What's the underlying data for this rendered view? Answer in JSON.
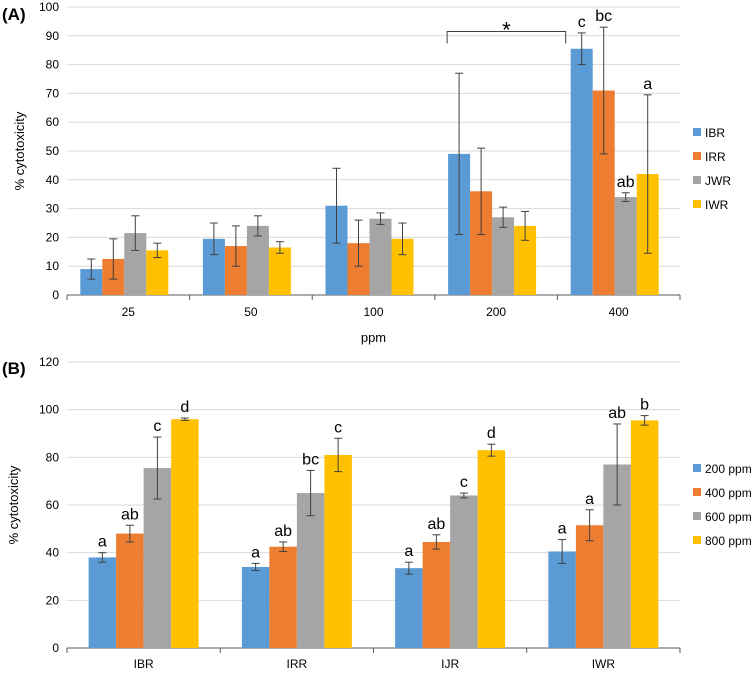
{
  "chart_data": [
    {
      "panel_label": "(A)",
      "type": "bar",
      "xlabel": "ppm",
      "ylabel": "% cytotoxicity",
      "ylim": [
        0,
        100
      ],
      "ytick_step": 10,
      "grid": true,
      "legend_position": "right",
      "categories": [
        "25",
        "50",
        "100",
        "200",
        "400"
      ],
      "series": [
        {
          "name": "IBR",
          "color": "#5b9bd5",
          "values": [
            9,
            19.5,
            31,
            49,
            85.5
          ],
          "errors": [
            3.5,
            5.5,
            13,
            28,
            5.5
          ],
          "labels": [
            "",
            "",
            "",
            "",
            "c"
          ]
        },
        {
          "name": "IRR",
          "color": "#ed7d31",
          "values": [
            12.5,
            17,
            18,
            36,
            71
          ],
          "errors": [
            7,
            7,
            8,
            15,
            22
          ],
          "labels": [
            "",
            "",
            "",
            "",
            "bc"
          ]
        },
        {
          "name": "JWR",
          "color": "#a5a5a5",
          "values": [
            21.5,
            24,
            26.5,
            27,
            34
          ],
          "errors": [
            6,
            3.5,
            2,
            3.5,
            1.5
          ],
          "labels": [
            "",
            "",
            "",
            "",
            "ab"
          ]
        },
        {
          "name": "IWR",
          "color": "#ffc000",
          "values": [
            15.5,
            16.5,
            19.5,
            24,
            42
          ],
          "errors": [
            2.5,
            2,
            5.5,
            5,
            27.5
          ],
          "labels": [
            "",
            "",
            "",
            "",
            "a"
          ]
        }
      ],
      "annotation": {
        "text": "*",
        "from_category": "200",
        "to_category": "400"
      }
    },
    {
      "panel_label": "(B)",
      "type": "bar",
      "xlabel": "",
      "ylabel": "% cytotoxicity",
      "ylim": [
        0,
        120
      ],
      "ytick_step": 20,
      "grid": true,
      "legend_position": "right",
      "categories": [
        "IBR",
        "IRR",
        "IJR",
        "IWR"
      ],
      "series": [
        {
          "name": "200 ppm",
          "color": "#5b9bd5",
          "values": [
            38,
            34,
            33.5,
            40.5
          ],
          "errors": [
            2,
            1.5,
            2.5,
            5
          ],
          "labels": [
            "a",
            "a",
            "a",
            "a"
          ]
        },
        {
          "name": "400 ppm",
          "color": "#ed7d31",
          "values": [
            48,
            42.5,
            44.5,
            51.5
          ],
          "errors": [
            3.5,
            2,
            3,
            6.5
          ],
          "labels": [
            "ab",
            "ab",
            "ab",
            "a"
          ]
        },
        {
          "name": "600 ppm",
          "color": "#a5a5a5",
          "values": [
            75.5,
            65,
            64,
            77
          ],
          "errors": [
            13,
            9.5,
            1,
            17
          ],
          "labels": [
            "c",
            "bc",
            "c",
            "ab"
          ]
        },
        {
          "name": "800 ppm",
          "color": "#ffc000",
          "values": [
            96,
            81,
            83,
            95.5
          ],
          "errors": [
            0.5,
            7,
            2.5,
            2
          ],
          "labels": [
            "d",
            "c",
            "d",
            "b"
          ]
        }
      ]
    }
  ]
}
